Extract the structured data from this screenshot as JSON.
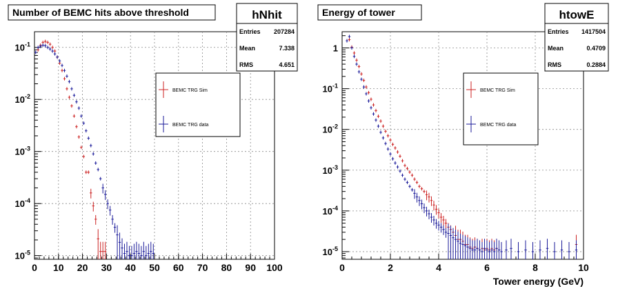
{
  "charts": [
    {
      "title": "Number of BEMC hits above threshold",
      "stats": {
        "name": "hNhit",
        "rows": [
          {
            "label": "Entries",
            "value": "207284"
          },
          {
            "label": "Mean",
            "value": "7.338"
          },
          {
            "label": "RMS",
            "value": "4.651"
          }
        ]
      },
      "legend": [
        "BEMC TRG Sim",
        "BEMC TRG data"
      ],
      "xlabel": "",
      "xticks": [
        "0",
        "10",
        "20",
        "30",
        "40",
        "50",
        "60",
        "70",
        "80",
        "90",
        "100"
      ],
      "yticks": [
        "10^-5",
        "10^-4",
        "10^-3",
        "10^-2",
        "10^-1"
      ]
    },
    {
      "title": "Energy of tower",
      "stats": {
        "name": "htowE",
        "rows": [
          {
            "label": "Entries",
            "value": "1417504"
          },
          {
            "label": "Mean",
            "value": "0.4709"
          },
          {
            "label": "RMS",
            "value": "0.2884"
          }
        ]
      },
      "legend": [
        "BEMC TRG Sim",
        "BEMC TRG data"
      ],
      "xlabel": "Tower energy (GeV)",
      "xticks": [
        "0",
        "2",
        "4",
        "6",
        "8",
        "10"
      ],
      "yticks": [
        "10^-5",
        "10^-4",
        "10^-3",
        "10^-2",
        "10^-1",
        "1"
      ]
    }
  ],
  "colors": {
    "sim": "#cc2222",
    "data": "#1a1a99",
    "frame": "#000000",
    "grid": "#888888"
  },
  "chart_data": [
    {
      "type": "scatter",
      "title": "Number of BEMC hits above threshold",
      "xlim": [
        0,
        100
      ],
      "ylim": [
        8.5e-06,
        0.2
      ],
      "yscale": "log",
      "grid": true,
      "legend_position": "top-right",
      "series": [
        {
          "name": "BEMC TRG Sim",
          "color": "#cc2222",
          "x": [
            1.5,
            2.5,
            3.5,
            4.5,
            5.5,
            6.5,
            7.5,
            8.5,
            9.5,
            10.5,
            11.5,
            12.5,
            13.5,
            14.5,
            15.5,
            16.5,
            17.5,
            18.5,
            19.5,
            20.5,
            21.5,
            22.5,
            23.5,
            24.5,
            25.5,
            26.5,
            27.5,
            28.5,
            29.5
          ],
          "y": [
            0.09,
            0.11,
            0.125,
            0.13,
            0.125,
            0.115,
            0.1,
            0.085,
            0.065,
            0.05,
            0.036,
            0.025,
            0.016,
            0.011,
            0.0075,
            0.0048,
            0.003,
            0.0019,
            0.0012,
            0.0008,
            0.0004,
            0.0004,
            0.00016,
            9e-05,
            5e-05,
            2.1e-05,
            1.2e-05,
            1.2e-05,
            1.2e-05
          ]
        },
        {
          "name": "BEMC TRG data",
          "color": "#1a1a99",
          "x": [
            0.5,
            1.5,
            2.5,
            3.5,
            4.5,
            5.5,
            6.5,
            7.5,
            8.5,
            9.5,
            10.5,
            11.5,
            12.5,
            13.5,
            14.5,
            15.5,
            16.5,
            17.5,
            18.5,
            19.5,
            20.5,
            21.5,
            22.5,
            23.5,
            24.5,
            25.5,
            26.5,
            27.5,
            28.5,
            29.5,
            30.5,
            31.5,
            32.5,
            33.5,
            34.5,
            35.5,
            36.5,
            37.5,
            38.5,
            39.5,
            40.5,
            41.5,
            42.5,
            43.5,
            44.5,
            45.5,
            46.5,
            47.5,
            48.5,
            49.5
          ],
          "y": [
            0.08,
            0.1,
            0.105,
            0.11,
            0.108,
            0.1,
            0.093,
            0.085,
            0.075,
            0.065,
            0.055,
            0.045,
            0.036,
            0.028,
            0.022,
            0.016,
            0.012,
            0.009,
            0.0068,
            0.0048,
            0.0035,
            0.0025,
            0.0018,
            0.0013,
            0.0009,
            0.0006,
            0.00045,
            0.0003,
            0.0002,
            0.00015,
            0.0001,
            7.5e-05,
            5e-05,
            3.5e-05,
            2.5e-05,
            1.8e-05,
            1.4e-05,
            1.1e-05,
            1.2e-05,
            1e-05,
            1e-05,
            1.1e-05,
            1.2e-05,
            1.1e-05,
            1e-05,
            1.2e-05,
            1e-05,
            1.1e-05,
            1.2e-05,
            1.1e-05
          ]
        }
      ],
      "stats": {
        "name": "hNhit",
        "entries": 207284,
        "mean": 7.338,
        "rms": 4.651
      }
    },
    {
      "type": "scatter",
      "title": "Energy of tower",
      "xlabel": "Tower energy (GeV)",
      "xlim": [
        0,
        10
      ],
      "ylim": [
        6.5e-06,
        2.5
      ],
      "yscale": "log",
      "grid": true,
      "legend_position": "top-right",
      "series": [
        {
          "name": "BEMC TRG Sim",
          "color": "#cc2222",
          "x": [
            0.3,
            0.4,
            0.5,
            0.6,
            0.7,
            0.8,
            0.9,
            1.0,
            1.1,
            1.2,
            1.3,
            1.4,
            1.5,
            1.6,
            1.7,
            1.8,
            1.9,
            2.0,
            2.1,
            2.2,
            2.3,
            2.4,
            2.5,
            2.6,
            2.7,
            2.8,
            2.9,
            3.0,
            3.1,
            3.2,
            3.3,
            3.4,
            3.5,
            3.6,
            3.7,
            3.8,
            3.9,
            4.0,
            4.1,
            4.2,
            4.3,
            4.4,
            4.5,
            4.6,
            4.7,
            4.8,
            4.9,
            5.0,
            5.1,
            5.2,
            5.3,
            5.4,
            5.5,
            5.6,
            5.7,
            5.8,
            5.9,
            6.0,
            6.1,
            6.2,
            6.3,
            6.4,
            6.5,
            9.7
          ],
          "y": [
            1.6,
            1.05,
            0.75,
            0.5,
            0.35,
            0.23,
            0.16,
            0.11,
            0.08,
            0.055,
            0.04,
            0.029,
            0.021,
            0.016,
            0.012,
            0.009,
            0.007,
            0.0055,
            0.0043,
            0.0035,
            0.0028,
            0.0022,
            0.0017,
            0.0013,
            0.0011,
            0.0009,
            0.00075,
            0.0006,
            0.0005,
            0.0004,
            0.00035,
            0.0003,
            0.00025,
            0.00022,
            0.00018,
            0.00014,
            0.00011,
            9e-05,
            7e-05,
            6e-05,
            5e-05,
            4e-05,
            3.5e-05,
            3e-05,
            2.5e-05,
            2e-05,
            2e-05,
            1.8e-05,
            1.5e-05,
            1.5e-05,
            1.3e-05,
            1.2e-05,
            1.3e-05,
            1.2e-05,
            1.1e-05,
            1.2e-05,
            1.1e-05,
            1.2e-05,
            1.1e-05,
            1.2e-05,
            1.1e-05,
            1.2e-05,
            1.1e-05,
            1.5e-05
          ]
        },
        {
          "name": "BEMC TRG data",
          "color": "#1a1a99",
          "x": [
            0.2,
            0.3,
            0.4,
            0.5,
            0.6,
            0.7,
            0.8,
            0.9,
            1.0,
            1.1,
            1.2,
            1.3,
            1.4,
            1.5,
            1.6,
            1.7,
            1.8,
            1.9,
            2.0,
            2.1,
            2.2,
            2.3,
            2.4,
            2.5,
            2.6,
            2.7,
            2.8,
            2.9,
            3.0,
            3.1,
            3.2,
            3.3,
            3.4,
            3.5,
            3.6,
            3.7,
            3.8,
            3.9,
            4.0,
            4.1,
            4.2,
            4.3,
            4.4,
            4.5,
            4.6,
            4.7,
            4.8,
            4.9,
            5.0,
            5.1,
            5.2,
            5.3,
            5.4,
            5.5,
            5.6,
            5.7,
            5.8,
            5.9,
            6.0,
            6.1,
            6.2,
            6.3,
            6.4,
            6.5,
            6.6,
            6.8,
            7.0,
            7.3,
            7.6,
            7.9,
            8.2,
            8.5,
            8.8,
            9.1,
            9.4,
            9.7
          ],
          "y": [
            1.5,
            1.9,
            1.0,
            0.62,
            0.4,
            0.26,
            0.17,
            0.11,
            0.075,
            0.05,
            0.034,
            0.024,
            0.017,
            0.012,
            0.0085,
            0.0062,
            0.0045,
            0.0033,
            0.0025,
            0.0019,
            0.0015,
            0.0012,
            0.00095,
            0.00075,
            0.0006,
            0.0005,
            0.0004,
            0.00033,
            0.00027,
            0.00022,
            0.00018,
            0.00015,
            0.00012,
            0.0001,
            8.5e-05,
            7e-05,
            6e-05,
            5e-05,
            4.5e-05,
            4e-05,
            3.5e-05,
            3e-05,
            2.8e-05,
            2.5e-05,
            2.2e-05,
            2e-05,
            1.8e-05,
            1.6e-05,
            1.5e-05,
            1.4e-05,
            1.3e-05,
            1.2e-05,
            1.1e-05,
            1.1e-05,
            1.2e-05,
            1.1e-05,
            1e-05,
            1.2e-05,
            1.1e-05,
            1e-05,
            1.1e-05,
            1e-05,
            1.2e-05,
            1.1e-05,
            1e-05,
            1.1e-05,
            1.2e-05,
            1e-05,
            1.1e-05,
            1e-05,
            1.1e-05,
            1.2e-05,
            1e-05,
            1.1e-05,
            1e-05,
            1.1e-05
          ]
        }
      ],
      "stats": {
        "name": "htowE",
        "entries": 1417504,
        "mean": 0.4709,
        "rms": 0.2884
      }
    }
  ]
}
